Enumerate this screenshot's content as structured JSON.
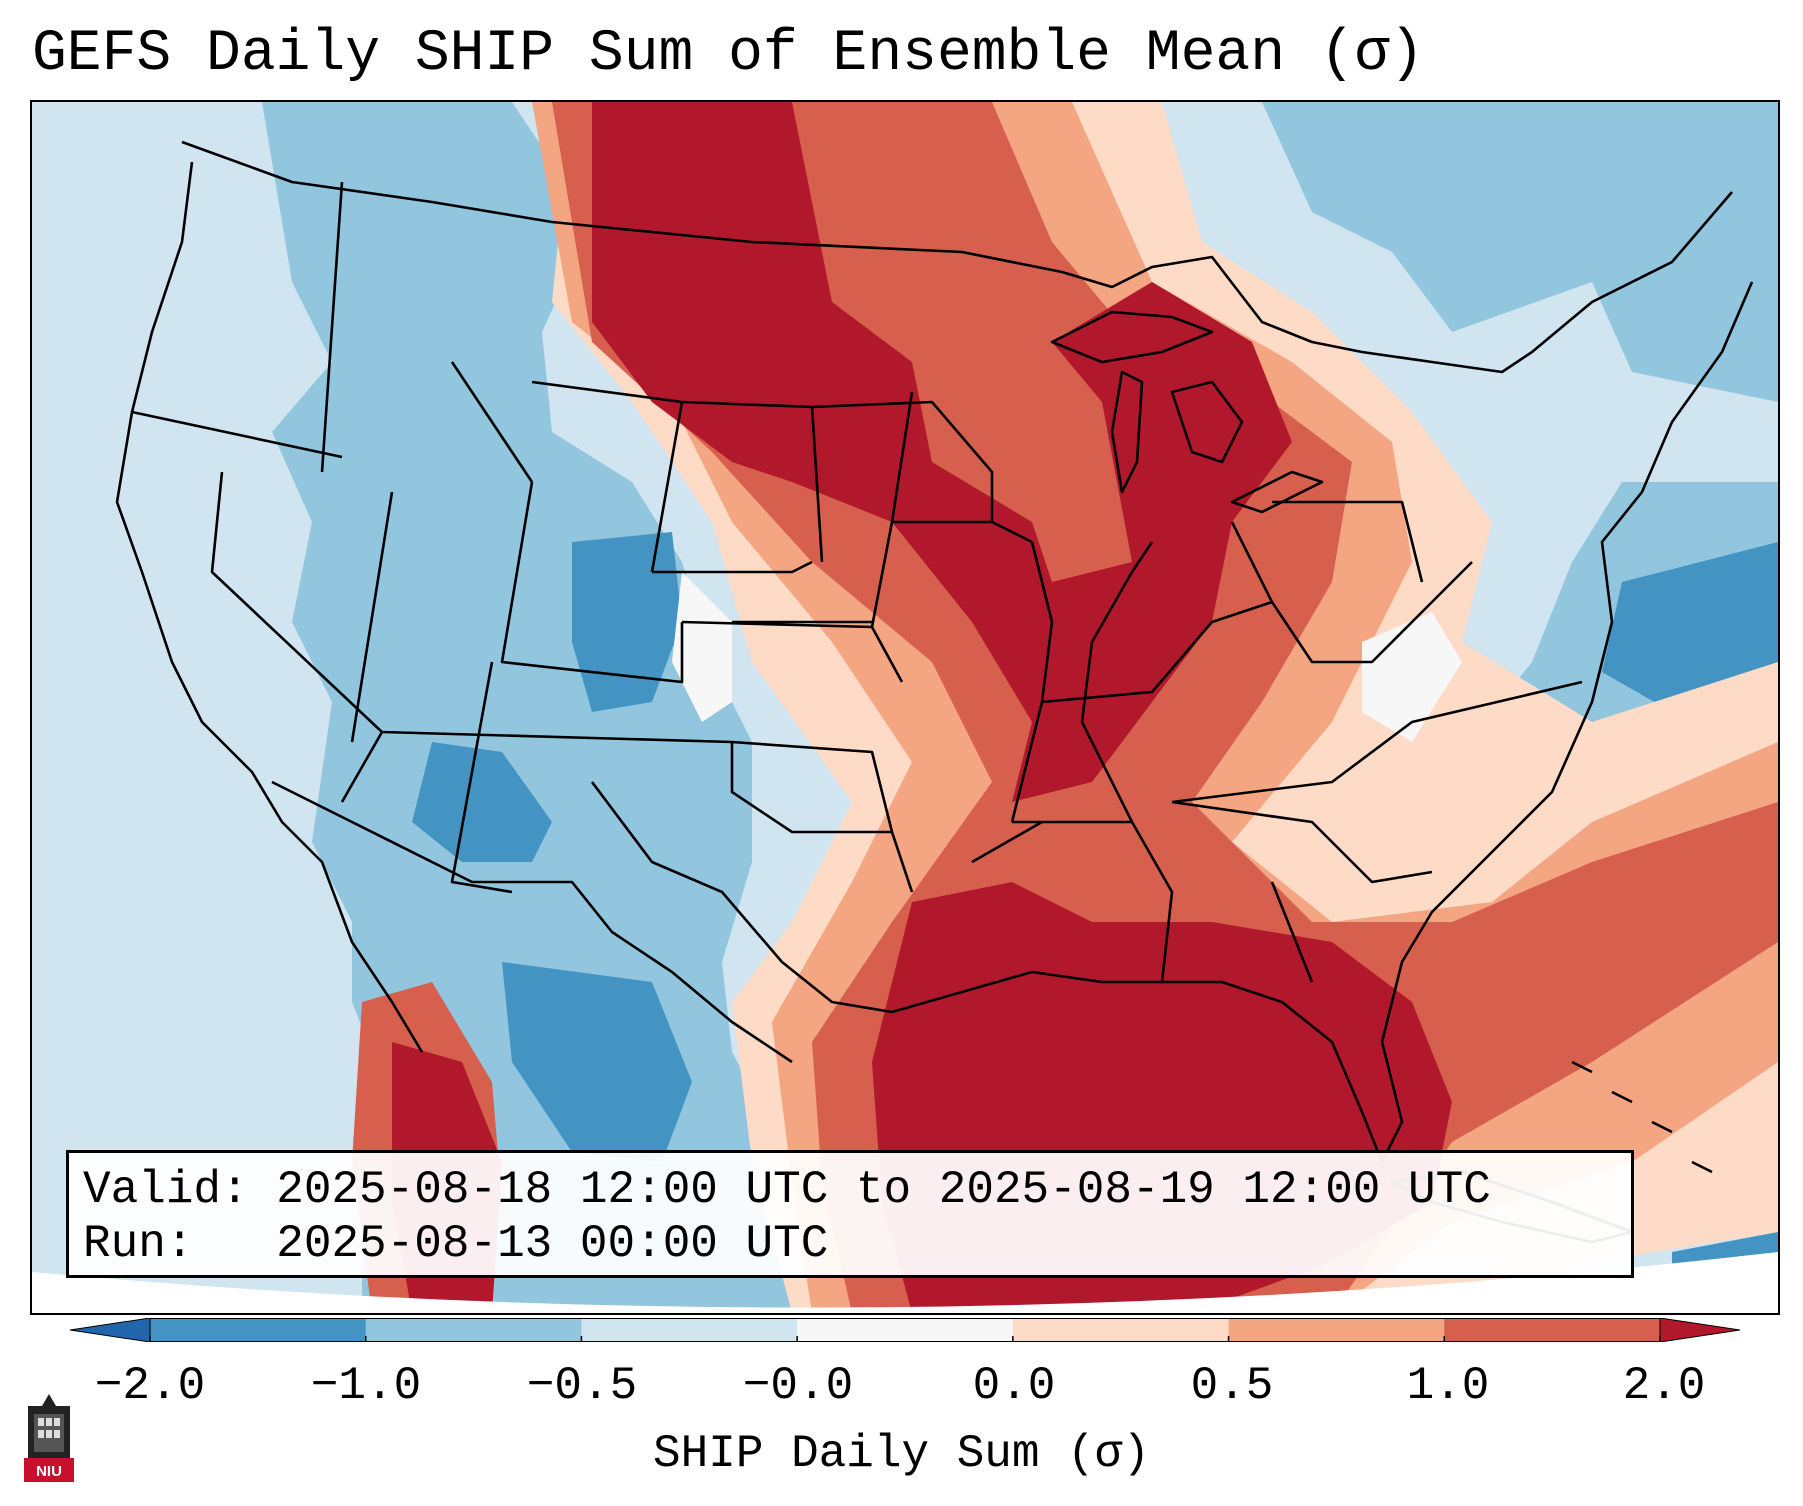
{
  "title": "GEFS Daily SHIP Sum of Ensemble Mean (σ)",
  "info": {
    "valid_line": "Valid: 2025-08-18 12:00 UTC to 2025-08-19 12:00 UTC",
    "run_line": "Run:   2025-08-13 00:00 UTC"
  },
  "colorbar": {
    "label": "SHIP Daily Sum (σ)",
    "ticks": [
      "−2.0",
      "−1.0",
      "−0.5",
      "−0.0",
      "0.0",
      "0.5",
      "1.0",
      "2.0"
    ],
    "colors": [
      "#2166ac",
      "#4393c3",
      "#92c5de",
      "#d1e5f0",
      "#f7f7f7",
      "#fddbc7",
      "#f4a582",
      "#d6604d",
      "#b2182b"
    ]
  },
  "logo": {
    "text": "NIU"
  }
}
